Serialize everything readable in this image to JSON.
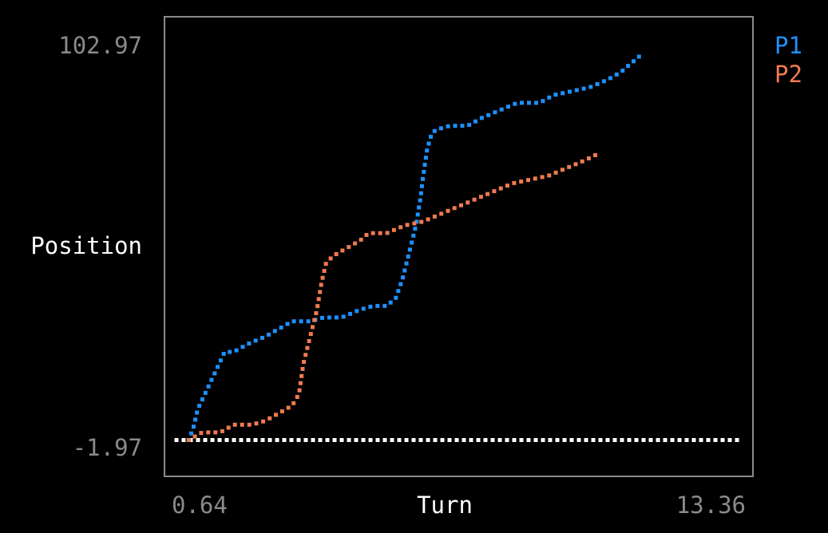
{
  "chart_data": {
    "type": "scatter",
    "title": "",
    "xlabel": "Turn",
    "ylabel": "Position",
    "xlim": [
      0.64,
      13.36
    ],
    "ylim": [
      -1.97,
      102.97
    ],
    "x_tick_labels": [
      "0.64",
      "13.36"
    ],
    "y_tick_labels": [
      "102.97",
      "-1.97"
    ],
    "grid": false,
    "legend": "right",
    "baseline": {
      "y": 0,
      "color": "#ffffff",
      "x_range": [
        0.64,
        13.36
      ]
    },
    "series": [
      {
        "name": "P1",
        "color": "#1e90ff",
        "points": [
          [
            1,
            0
          ],
          [
            1.1,
            3
          ],
          [
            1.2,
            8
          ],
          [
            1.4,
            13
          ],
          [
            1.6,
            18
          ],
          [
            1.8,
            23
          ],
          [
            2,
            23
          ],
          [
            2.3,
            25
          ],
          [
            2.7,
            27
          ],
          [
            3,
            29
          ],
          [
            3.3,
            31
          ],
          [
            3.7,
            31
          ],
          [
            4,
            32
          ],
          [
            4.4,
            32
          ],
          [
            4.8,
            34
          ],
          [
            5.1,
            35
          ],
          [
            5.4,
            35
          ],
          [
            5.6,
            37
          ],
          [
            5.75,
            42
          ],
          [
            5.9,
            49
          ],
          [
            6.05,
            56
          ],
          [
            6.15,
            63
          ],
          [
            6.2,
            68
          ],
          [
            6.3,
            76
          ],
          [
            6.4,
            80
          ],
          [
            6.5,
            81
          ],
          [
            6.8,
            82
          ],
          [
            7.2,
            82
          ],
          [
            7.5,
            84
          ],
          [
            7.9,
            86
          ],
          [
            8.3,
            88
          ],
          [
            8.8,
            88
          ],
          [
            9.1,
            90
          ],
          [
            9.5,
            91
          ],
          [
            9.9,
            92
          ],
          [
            10.3,
            94
          ],
          [
            10.6,
            96
          ],
          [
            10.9,
            99
          ],
          [
            11.1,
            101
          ]
        ]
      },
      {
        "name": "P2",
        "color": "#f07b50",
        "points": [
          [
            1,
            0
          ],
          [
            1.3,
            2
          ],
          [
            1.7,
            2
          ],
          [
            2,
            4
          ],
          [
            2.4,
            4
          ],
          [
            2.7,
            5
          ],
          [
            3,
            7
          ],
          [
            3.3,
            9
          ],
          [
            3.45,
            12
          ],
          [
            3.55,
            20
          ],
          [
            3.7,
            27
          ],
          [
            3.85,
            34
          ],
          [
            3.95,
            41
          ],
          [
            4.05,
            46
          ],
          [
            4.2,
            48
          ],
          [
            4.5,
            50
          ],
          [
            4.8,
            52
          ],
          [
            5,
            54
          ],
          [
            5.4,
            54
          ],
          [
            5.8,
            56
          ],
          [
            6.2,
            57
          ],
          [
            6.6,
            59
          ],
          [
            7,
            61
          ],
          [
            7.4,
            63
          ],
          [
            7.8,
            65
          ],
          [
            8.2,
            67
          ],
          [
            8.6,
            68
          ],
          [
            9,
            69
          ],
          [
            9.4,
            71
          ],
          [
            9.8,
            73
          ],
          [
            10.15,
            75
          ]
        ]
      }
    ]
  }
}
